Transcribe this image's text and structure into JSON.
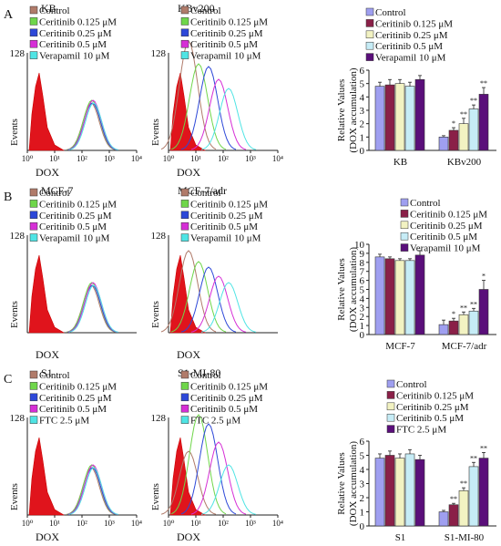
{
  "legend_colors": {
    "Control": "#9f9ff0",
    "Ceritinib 0.125": "#8a2048",
    "Ceritinib 0.25": "#f2f2c2",
    "Ceritinib 0.5": "#c6ecf6",
    "Verapamil": "#5a0f7a",
    "FTC": "#5a0f7a"
  },
  "flow_colors": {
    "Control": "#b07b6a",
    "Ceritinib 0.125": "#6fd64a",
    "Ceritinib 0.25": "#2d48d8",
    "Ceritinib 0.5": "#d62fd6",
    "Verapamil": "#4fe4e4",
    "FTC": "#4fe4e4"
  },
  "panels": [
    {
      "letter": "A",
      "left_title": "KB",
      "right_title": "KBv200",
      "ymax_label": "128",
      "ylabel": "Events",
      "xlabel": "DOX",
      "xticks": [
        "10⁰",
        "10¹",
        "10²",
        "10³",
        "10⁴"
      ],
      "legend": [
        "Control",
        "Ceritinib 0.125 μM",
        "Ceritinib 0.25 μM",
        "Ceritinib 0.5 μM",
        "Verapamil 10 μM"
      ]
    },
    {
      "letter": "B",
      "left_title": "MCF-7",
      "right_title": "MCF-7/adr",
      "ymax_label": "128",
      "ylabel": "Events",
      "xlabel": "DOX",
      "legend": [
        "Control",
        "Ceritinib 0.125 μM",
        "Ceritinib 0.25 μM",
        "Ceritinib 0.5 μM",
        "Verapamil 10 μM"
      ]
    },
    {
      "letter": "C",
      "left_title": "S1",
      "right_title": "S1-MI-80",
      "ymax_label": "128",
      "ylabel": "Events",
      "xlabel": "DOX",
      "xticks": [
        "10⁰",
        "10¹",
        "10²",
        "10³",
        "10⁴"
      ],
      "legend": [
        "Control",
        "Ceritinib 0.125 μM",
        "Ceritinib 0.25 μM",
        "Ceritinib 0.5 μM",
        "FTC 2.5 μM"
      ]
    }
  ],
  "chart_data": [
    {
      "type": "bar",
      "panel": "A",
      "ylabel": "Relative Values (DOX accumulation)",
      "ylim": [
        0,
        6
      ],
      "yticks": [
        0,
        1,
        2,
        3,
        4,
        5,
        6
      ],
      "categories": [
        "KB",
        "KBv200"
      ],
      "legend": [
        "Control",
        "Ceritinib 0.125 μM",
        "Ceritinib 0.25 μM",
        "Ceritinib 0.5 μM",
        "Verapamil 10 μM"
      ],
      "series": [
        {
          "name": "Control",
          "values": [
            4.8,
            1.0
          ],
          "errors": [
            0.3,
            0.1
          ],
          "sig": [
            "",
            ""
          ]
        },
        {
          "name": "Ceritinib 0.125 μM",
          "values": [
            4.9,
            1.5
          ],
          "errors": [
            0.4,
            0.2
          ],
          "sig": [
            "",
            "*"
          ]
        },
        {
          "name": "Ceritinib 0.25 μM",
          "values": [
            5.0,
            2.0
          ],
          "errors": [
            0.3,
            0.4
          ],
          "sig": [
            "",
            "**"
          ]
        },
        {
          "name": "Ceritinib 0.5 μM",
          "values": [
            4.8,
            3.1
          ],
          "errors": [
            0.3,
            0.3
          ],
          "sig": [
            "",
            "**"
          ]
        },
        {
          "name": "Verapamil 10 μM",
          "values": [
            5.3,
            4.2
          ],
          "errors": [
            0.3,
            0.5
          ],
          "sig": [
            "",
            "**"
          ]
        }
      ]
    },
    {
      "type": "bar",
      "panel": "B",
      "ylabel": "Relative Values (DOX accumulation)",
      "ylim": [
        0,
        10
      ],
      "yticks": [
        0,
        1,
        2,
        3,
        4,
        5,
        6,
        7,
        8,
        9,
        10
      ],
      "categories": [
        "MCF-7",
        "MCF-7/adr"
      ],
      "legend": [
        "Control",
        "Ceritinib 0.125 μM",
        "Ceritinib 0.25 μM",
        "Ceritinib 0.5 μM",
        "Verapamil 10 μM"
      ],
      "series": [
        {
          "name": "Control",
          "values": [
            8.6,
            1.1
          ],
          "errors": [
            0.3,
            0.5
          ],
          "sig": [
            "",
            ""
          ]
        },
        {
          "name": "Ceritinib 0.125 μM",
          "values": [
            8.4,
            1.5
          ],
          "errors": [
            0.2,
            0.3
          ],
          "sig": [
            "",
            "*"
          ]
        },
        {
          "name": "Ceritinib 0.25 μM",
          "values": [
            8.2,
            2.2
          ],
          "errors": [
            0.2,
            0.3
          ],
          "sig": [
            "",
            "**"
          ]
        },
        {
          "name": "Ceritinib 0.5 μM",
          "values": [
            8.2,
            2.6
          ],
          "errors": [
            0.2,
            0.3
          ],
          "sig": [
            "",
            "**"
          ]
        },
        {
          "name": "Verapamil 10 μM",
          "values": [
            8.8,
            5.0
          ],
          "errors": [
            0.5,
            1.0
          ],
          "sig": [
            "",
            "*"
          ]
        }
      ]
    },
    {
      "type": "bar",
      "panel": "C",
      "ylabel": "Relative Values (DOX accumulation)",
      "ylim": [
        0,
        6
      ],
      "yticks": [
        0,
        1,
        2,
        3,
        4,
        5,
        6
      ],
      "categories": [
        "S1",
        "S1-MI-80"
      ],
      "legend": [
        "Control",
        "Ceritinib 0.125 μM",
        "Ceritinib 0.25 μM",
        "Ceritinib 0.5 μM",
        "FTC 2.5 μM"
      ],
      "series": [
        {
          "name": "Control",
          "values": [
            4.8,
            1.0
          ],
          "errors": [
            0.3,
            0.1
          ],
          "sig": [
            "",
            ""
          ]
        },
        {
          "name": "Ceritinib 0.125 μM",
          "values": [
            5.0,
            1.5
          ],
          "errors": [
            0.3,
            0.1
          ],
          "sig": [
            "",
            "**"
          ]
        },
        {
          "name": "Ceritinib 0.25 μM",
          "values": [
            4.8,
            2.5
          ],
          "errors": [
            0.3,
            0.2
          ],
          "sig": [
            "",
            "**"
          ]
        },
        {
          "name": "Ceritinib 0.5 μM",
          "values": [
            5.1,
            4.2
          ],
          "errors": [
            0.3,
            0.3
          ],
          "sig": [
            "",
            "**"
          ]
        },
        {
          "name": "FTC 2.5 μM",
          "values": [
            4.7,
            4.8
          ],
          "errors": [
            0.3,
            0.4
          ],
          "sig": [
            "",
            "**"
          ]
        }
      ]
    }
  ]
}
